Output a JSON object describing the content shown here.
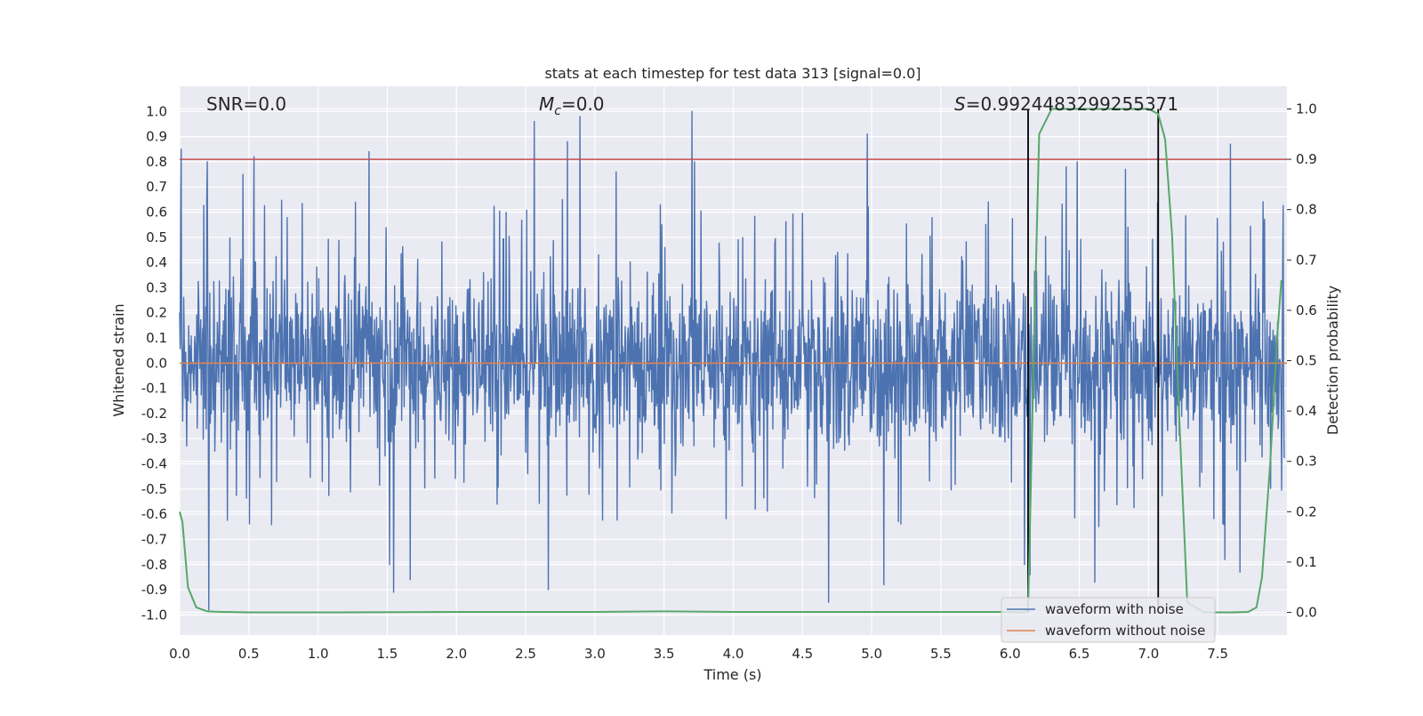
{
  "chart_data": {
    "type": "line",
    "title": "stats at each timestep for test data 313 [signal=0.0]",
    "xlabel": "Time (s)",
    "ylabel_left": "Whitened strain",
    "ylabel_right": "Detection probability",
    "xlim": [
      0.0,
      8.0
    ],
    "ylim_left": [
      -1.08,
      1.1
    ],
    "ylim_right": [
      -0.045,
      1.045
    ],
    "x_ticks": [
      "0.0",
      "0.5",
      "1.0",
      "1.5",
      "2.0",
      "2.5",
      "3.0",
      "3.5",
      "4.0",
      "4.5",
      "5.0",
      "5.5",
      "6.0",
      "6.5",
      "7.0",
      "7.5"
    ],
    "y_ticks_left": [
      "1.0",
      "0.9",
      "0.8",
      "0.7",
      "0.6",
      "0.5",
      "0.4",
      "0.3",
      "0.2",
      "0.1",
      "0.0",
      "-0.1",
      "-0.2",
      "-0.3",
      "-0.4",
      "-0.5",
      "-0.6",
      "-0.7",
      "-0.8",
      "-0.9",
      "-1.0"
    ],
    "y_ticks_right": [
      "1.0",
      "0.9",
      "0.8",
      "0.7",
      "0.6",
      "0.5",
      "0.4",
      "0.3",
      "0.2",
      "0.1",
      "0.0"
    ],
    "grid": true,
    "annotations": {
      "snr": "SNR=0.0",
      "mc_symbol": "M",
      "mc_subscript": "c",
      "mc_value": "=0.0",
      "s_symbol": "S",
      "s_value": "=0.9924483299255371"
    },
    "threshold_line": {
      "axis": "right",
      "y": 0.9,
      "color": "#c44e52"
    },
    "detection_window": {
      "x": [
        6.13,
        7.07
      ],
      "color": "#000000"
    },
    "series": [
      {
        "name": "waveform with noise",
        "axis": "left",
        "color": "#4c72b0",
        "kind": "noise",
        "envelope": {
          "typical_abs": 0.4,
          "min": -1.0,
          "max": 1.0
        },
        "peaks": [
          [
            0.01,
            0.85
          ],
          [
            0.2,
            0.8
          ],
          [
            0.21,
            -0.98
          ],
          [
            0.46,
            0.75
          ],
          [
            0.54,
            0.82
          ],
          [
            1.37,
            0.84
          ],
          [
            1.52,
            -0.8
          ],
          [
            1.55,
            -0.91
          ],
          [
            1.67,
            -0.86
          ],
          [
            2.57,
            0.96
          ],
          [
            2.67,
            -0.9
          ],
          [
            2.81,
            0.88
          ],
          [
            2.9,
            0.98
          ],
          [
            3.16,
            0.76
          ],
          [
            3.71,
            1.0
          ],
          [
            3.73,
            0.8
          ],
          [
            4.7,
            -0.95
          ],
          [
            4.98,
            0.91
          ],
          [
            5.1,
            -0.88
          ],
          [
            6.12,
            -0.8
          ],
          [
            6.16,
            -0.84
          ],
          [
            6.42,
            0.78
          ],
          [
            6.5,
            0.8
          ],
          [
            6.63,
            -0.87
          ],
          [
            6.85,
            0.77
          ],
          [
            7.57,
            -0.78
          ],
          [
            7.61,
            0.87
          ],
          [
            7.68,
            -0.83
          ]
        ]
      },
      {
        "name": "waveform without noise",
        "axis": "left",
        "color": "#dd8452",
        "x": [
          0.0,
          8.0
        ],
        "y": [
          0.0,
          0.0
        ]
      },
      {
        "name": "",
        "axis": "right",
        "color": "#55a868",
        "x": [
          0.0,
          0.02,
          0.06,
          0.12,
          0.2,
          0.3,
          0.5,
          1.0,
          2.0,
          3.0,
          3.5,
          4.0,
          5.0,
          5.8,
          6.0,
          6.1,
          6.13,
          6.17,
          6.21,
          6.3,
          6.5,
          6.8,
          7.0,
          7.07,
          7.12,
          7.17,
          7.22,
          7.28,
          7.4,
          7.6,
          7.72,
          7.78,
          7.82,
          7.88,
          7.93,
          7.96
        ],
        "y": [
          0.2,
          0.18,
          0.05,
          0.01,
          0.002,
          0.001,
          0.0,
          0.0,
          0.001,
          0.001,
          0.002,
          0.001,
          0.001,
          0.001,
          0.001,
          0.0,
          0.005,
          0.5,
          0.95,
          1.0,
          1.0,
          1.0,
          1.0,
          0.99,
          0.94,
          0.75,
          0.4,
          0.02,
          0.0,
          0.0,
          0.001,
          0.01,
          0.07,
          0.3,
          0.55,
          0.66
        ]
      }
    ],
    "legend": {
      "position": "lower right",
      "entries": [
        {
          "label": "waveform with noise",
          "color": "#4c72b0"
        },
        {
          "label": "waveform without noise",
          "color": "#dd8452"
        }
      ]
    },
    "colors": {
      "plot_bg": "#eaeaf2",
      "grid": "#ffffff",
      "text": "#262626"
    }
  }
}
